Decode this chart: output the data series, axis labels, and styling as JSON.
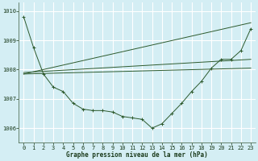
{
  "title": "Graphe pression niveau de la mer (hPa)",
  "bg_color": "#d4eef4",
  "grid_color": "#ffffff",
  "line_color": "#2d5a2d",
  "xlim": [
    -0.5,
    23.5
  ],
  "ylim": [
    1005.5,
    1010.3
  ],
  "yticks": [
    1006,
    1007,
    1008,
    1009,
    1010
  ],
  "xticks": [
    0,
    1,
    2,
    3,
    4,
    5,
    6,
    7,
    8,
    9,
    10,
    11,
    12,
    13,
    14,
    15,
    16,
    17,
    18,
    19,
    20,
    21,
    22,
    23
  ],
  "series_curve": [
    1009.8,
    1008.75,
    1007.85,
    1007.4,
    1007.25,
    1006.85,
    1006.65,
    1006.6,
    1006.6,
    1006.55,
    1006.4,
    1006.35,
    1006.3,
    1006.0,
    1006.15,
    1006.5,
    1006.85,
    1007.25,
    1007.6,
    1008.05,
    1008.35,
    1008.35,
    1008.65,
    1009.4
  ],
  "series_line1_x": [
    0,
    23
  ],
  "series_line1_y": [
    1007.85,
    1008.05
  ],
  "series_line2_x": [
    0,
    23
  ],
  "series_line2_y": [
    1007.85,
    1009.6
  ],
  "series_line3_x": [
    0,
    23
  ],
  "series_line3_y": [
    1007.9,
    1008.35
  ]
}
